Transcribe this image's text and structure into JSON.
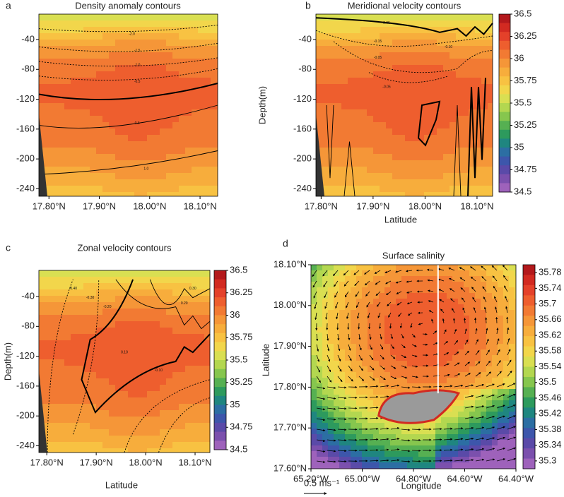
{
  "chart_data": [
    {
      "type": "contour",
      "panel_label": "a",
      "title": "Density anomaly contours",
      "xlim": [
        17.78,
        18.135
      ],
      "xticks": [
        {
          "value": 17.8,
          "label": "17.80°N"
        },
        {
          "value": 17.9,
          "label": "17.90°N"
        },
        {
          "value": 18.0,
          "label": "18.00°N"
        },
        {
          "value": 18.1,
          "label": "18.10°N"
        }
      ],
      "ylim": [
        -250,
        -6
      ],
      "yticks": [
        -40,
        -80,
        -120,
        -160,
        -200,
        -240
      ],
      "clim": [
        34.5,
        36.5
      ],
      "colormap": [
        "#b3191c",
        "#d22a21",
        "#e4412a",
        "#ee5e2e",
        "#f27a33",
        "#f59638",
        "#f7ad3c",
        "#f8c242",
        "#f2d64b",
        "#d9df52",
        "#b3d750",
        "#86c64e",
        "#56b052",
        "#2d9a5d",
        "#1f8680",
        "#2c6ea3",
        "#3d56ab",
        "#5a4aa8",
        "#7b50ad",
        "#9e62bb"
      ],
      "contour_labels": [
        "-2.0",
        "-1.5",
        "-1.0",
        "-0.5",
        "0.5",
        "1.0"
      ]
    },
    {
      "type": "contour",
      "panel_label": "b",
      "title": "Meridional velocity contours",
      "xlabel": "Latitude",
      "ylabel": "Depth(m)",
      "xlim": [
        17.79,
        18.13
      ],
      "xticks": [
        {
          "value": 17.8,
          "label": "17.80°N"
        },
        {
          "value": 17.9,
          "label": "17.90°N"
        },
        {
          "value": 18.0,
          "label": "18.00°N"
        },
        {
          "value": 18.1,
          "label": "18.10°N"
        }
      ],
      "ylim": [
        -250,
        -6
      ],
      "yticks": [
        -40,
        -80,
        -120,
        -160,
        -200,
        -240
      ],
      "clim": [
        34.5,
        36.5
      ],
      "colorbar_ticks": [
        36.5,
        36.25,
        36,
        35.75,
        35.5,
        35.25,
        35,
        34.75,
        34.5
      ],
      "colormap": [
        "#b3191c",
        "#d22a21",
        "#e4412a",
        "#ee5e2e",
        "#f27a33",
        "#f59638",
        "#f7ad3c",
        "#f8c242",
        "#f2d64b",
        "#d9df52",
        "#b3d750",
        "#86c64e",
        "#56b052",
        "#2d9a5d",
        "#1f8680",
        "#2c6ea3",
        "#3d56ab",
        "#5a4aa8",
        "#7b50ad",
        "#9e62bb"
      ],
      "contour_labels": [
        "0.05",
        "-0.05",
        "-0.15",
        "-0.10",
        "-0.05"
      ]
    },
    {
      "type": "contour",
      "panel_label": "c",
      "title": "Zonal velocity contours",
      "xlabel": "Latitude",
      "ylabel": "Depth(m)",
      "xlim": [
        17.784,
        18.13
      ],
      "xticks": [
        {
          "value": 17.8,
          "label": "17.80°N"
        },
        {
          "value": 17.9,
          "label": "17.90°N"
        },
        {
          "value": 18.0,
          "label": "18.00°N"
        },
        {
          "value": 18.1,
          "label": "18.10°N"
        }
      ],
      "ylim": [
        -249,
        -5
      ],
      "yticks": [
        -40,
        -80,
        -120,
        -160,
        -200,
        -240
      ],
      "clim": [
        34.5,
        36.5
      ],
      "colorbar_ticks": [
        36.5,
        36.25,
        36,
        35.75,
        35.5,
        35.25,
        35,
        34.75,
        34.5
      ],
      "colormap": [
        "#b3191c",
        "#d22a21",
        "#e4412a",
        "#ee5e2e",
        "#f27a33",
        "#f59638",
        "#f7ad3c",
        "#f8c242",
        "#f2d64b",
        "#d9df52",
        "#b3d750",
        "#86c64e",
        "#56b052",
        "#2d9a5d",
        "#1f8680",
        "#2c6ea3",
        "#3d56ab",
        "#5a4aa8",
        "#7b50ad",
        "#9e62bb"
      ],
      "contour_labels": [
        "-0.40",
        "-0.30",
        "-0.20",
        "0.10",
        "-0.10",
        "0.20",
        "0.30"
      ]
    },
    {
      "type": "quiver",
      "panel_label": "d",
      "title": "Surface salinity",
      "xlabel": "Longitude",
      "ylabel": "Latitude",
      "scale_label": "0.5 ms⁻¹",
      "xlim": [
        -65.2,
        -64.4
      ],
      "xticks": [
        {
          "value": -65.2,
          "label": "65.20°W"
        },
        {
          "value": -65.0,
          "label": "65.00°W"
        },
        {
          "value": -64.8,
          "label": "64.80°W"
        },
        {
          "value": -64.6,
          "label": "64.60°W"
        },
        {
          "value": -64.4,
          "label": "64.40°W"
        }
      ],
      "ylim": [
        17.6,
        18.1
      ],
      "yticks": [
        {
          "value": 18.1,
          "label": "18.10°N"
        },
        {
          "value": 18.0,
          "label": "18.00°N"
        },
        {
          "value": 17.9,
          "label": "17.90°N"
        },
        {
          "value": 17.8,
          "label": "17.80°N"
        },
        {
          "value": 17.7,
          "label": "17.70°N"
        },
        {
          "value": 17.6,
          "label": "17.60°N"
        }
      ],
      "clim": [
        35.28,
        35.8
      ],
      "colorbar_ticks": [
        35.78,
        35.74,
        35.7,
        35.66,
        35.62,
        35.58,
        35.54,
        35.5,
        35.46,
        35.42,
        35.38,
        35.34,
        35.3
      ],
      "colormap": [
        "#b3191c",
        "#d22a21",
        "#e4412a",
        "#ee5e2e",
        "#f27a33",
        "#f59638",
        "#f7ad3c",
        "#f8c242",
        "#f2d64b",
        "#d9df52",
        "#b3d750",
        "#86c64e",
        "#56b052",
        "#2d9a5d",
        "#1f8680",
        "#2c6ea3",
        "#3d56ab",
        "#5a4aa8",
        "#7b50ad",
        "#9e62bb"
      ]
    }
  ]
}
